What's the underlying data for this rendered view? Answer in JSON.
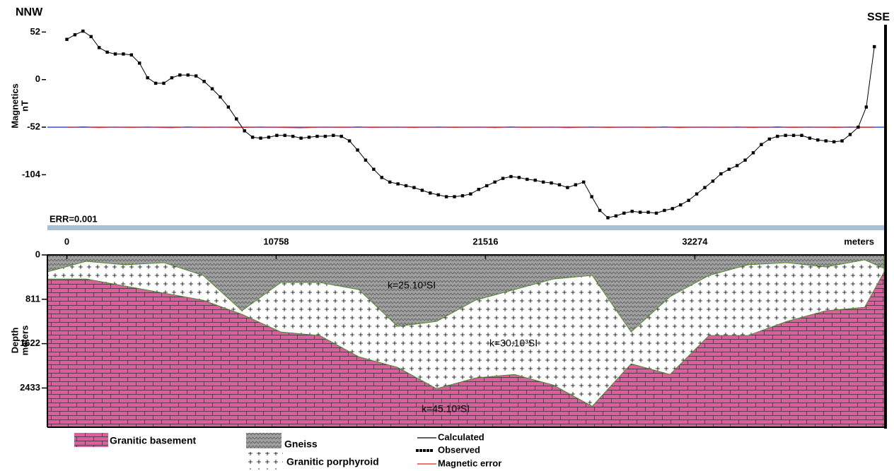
{
  "chart_data": [
    {
      "type": "line",
      "left_label": "NNW",
      "right_label": "SSE",
      "ylabel": [
        "Magnetics",
        "nT"
      ],
      "annotation": "ERR=0.001",
      "xlim": [
        -1000,
        42000
      ],
      "ylim": [
        -160,
        60
      ],
      "yticks": [
        52,
        0,
        -52,
        -104
      ],
      "reference_line": -52,
      "reference_color": "#3a4fe0",
      "x": [
        0,
        415,
        830,
        1245,
        1660,
        2075,
        2490,
        2905,
        3320,
        3735,
        4150,
        4565,
        4980,
        5395,
        5810,
        6225,
        6640,
        7055,
        7470,
        7885,
        8300,
        8715,
        9130,
        9545,
        9960,
        10375,
        10790,
        11205,
        11620,
        12035,
        12450,
        12865,
        13280,
        13695,
        14110,
        14525,
        14940,
        15355,
        15770,
        16185,
        16600,
        17015,
        17430,
        17845,
        18260,
        18675,
        19090,
        19505,
        19920,
        20335,
        20750,
        21165,
        21580,
        21995,
        22410,
        22825,
        23240,
        23655,
        24070,
        24485,
        24900,
        25315,
        25730,
        26145,
        26560,
        26975,
        27390,
        27805,
        28220,
        28635,
        29050,
        29465,
        29880,
        30295,
        30710,
        31125,
        31540,
        31955,
        32370,
        32785,
        33200,
        33615,
        34030,
        34445,
        34860,
        35275,
        35690,
        36105,
        36520,
        36935,
        37350,
        37765,
        38180,
        38595,
        39010,
        39425,
        39840,
        40255,
        40670,
        41085,
        41500
      ],
      "series": [
        {
          "name": "Calculated",
          "color": "#000000",
          "style": "line",
          "values": [
            44,
            49,
            53,
            47,
            35,
            30,
            28,
            28,
            27,
            18,
            2,
            -4,
            -4,
            2,
            5,
            5,
            4,
            -2,
            -10,
            -19,
            -30,
            -43,
            -56,
            -63,
            -64,
            -63,
            -61,
            -61,
            -62,
            -64,
            -63,
            -62,
            -62,
            -61,
            -62,
            -67,
            -77,
            -88,
            -98,
            -107,
            -112,
            -114,
            -116,
            -118,
            -121,
            -124,
            -126,
            -128,
            -128,
            -127,
            -125,
            -120,
            -116,
            -112,
            -108,
            -106,
            -107,
            -109,
            -110,
            -112,
            -113,
            -115,
            -118,
            -115,
            -112,
            -128,
            -143,
            -151,
            -149,
            -146,
            -144,
            -145,
            -145,
            -146,
            -143,
            -141,
            -137,
            -132,
            -125,
            -118,
            -111,
            -103,
            -98,
            -94,
            -88,
            -80,
            -71,
            -65,
            -62,
            -61,
            -61,
            -61,
            -64,
            -66,
            -67,
            -68,
            -67,
            -60,
            -52,
            -30,
            36
          ]
        },
        {
          "name": "Observed",
          "color": "#000000",
          "style": "markers",
          "values": [
            44,
            49,
            53,
            47,
            35,
            30,
            28,
            28,
            27,
            18,
            2,
            -4,
            -4,
            2,
            5,
            5,
            4,
            -2,
            -10,
            -19,
            -30,
            -43,
            -56,
            -63,
            -64,
            -63,
            -61,
            -61,
            -62,
            -64,
            -63,
            -62,
            -62,
            -61,
            -62,
            -67,
            -77,
            -88,
            -98,
            -107,
            -112,
            -114,
            -116,
            -118,
            -121,
            -124,
            -126,
            -128,
            -128,
            -127,
            -125,
            -120,
            -116,
            -112,
            -108,
            -106,
            -107,
            -109,
            -110,
            -112,
            -113,
            -115,
            -118,
            -115,
            -112,
            -128,
            -143,
            -151,
            -149,
            -146,
            -144,
            -145,
            -145,
            -146,
            -143,
            -141,
            -137,
            -132,
            -125,
            -118,
            -111,
            -103,
            -98,
            -94,
            -88,
            -80,
            -71,
            -65,
            -62,
            -61,
            -61,
            -61,
            -64,
            -66,
            -67,
            -68,
            -67,
            -60,
            -52,
            -30,
            36
          ]
        },
        {
          "name": "Magnetic error",
          "color": "#e02020",
          "style": "line",
          "values": [
            -52,
            -52,
            -51.5,
            -52,
            -52.5,
            -52,
            -51.8,
            -52,
            -52.3,
            -52,
            -51.7,
            -52,
            -52.4,
            -52.6,
            -52,
            -51.6,
            -52,
            -52.2,
            -52,
            -51.8,
            -52,
            -52.5,
            -52.3,
            -52,
            -51.7,
            -52,
            -52,
            -52.4,
            -52.6,
            -52.8,
            -52.4,
            -52,
            -51.8,
            -52,
            -52.2,
            -52,
            -51.6,
            -52,
            -52.3,
            -52,
            -52,
            -51.8,
            -52,
            -52.4,
            -52,
            -52,
            -51.7,
            -52,
            -52.3,
            -52,
            -52,
            -51.8,
            -52,
            -52.5,
            -52,
            -51.6,
            -52,
            -52.2,
            -52,
            -52,
            -51.8,
            -52,
            -52.6,
            -52.3,
            -52,
            -51.7,
            -52,
            -52.4,
            -52,
            -52,
            -51.8,
            -52,
            -52.3,
            -52,
            -51.6,
            -52,
            -52.5,
            -52,
            -52,
            -51.8,
            -52,
            -52.2,
            -52,
            -51.7,
            -52,
            -52.4,
            -52,
            -52,
            -51.5,
            -52,
            -52.3,
            -52,
            -51.8,
            -52,
            -52,
            -52.4,
            -52,
            -51.7,
            -52,
            -52.2,
            -52
          ]
        }
      ]
    },
    {
      "type": "section",
      "ylabel": [
        "Depth",
        "meters"
      ],
      "xlabel": "meters",
      "xlim": [
        -1000,
        42000
      ],
      "xticks": [
        0,
        10758,
        21516,
        32274
      ],
      "ylim": [
        0,
        3150
      ],
      "y_inverted": true,
      "yticks": [
        0,
        811,
        1622,
        2433
      ],
      "x": [
        -1000,
        1000,
        3000,
        5000,
        7000,
        9000,
        11000,
        13000,
        15000,
        17000,
        19000,
        21000,
        23000,
        25000,
        27000,
        29000,
        31000,
        33000,
        35000,
        37000,
        39000,
        41000,
        42000
      ],
      "series": [
        {
          "name": "Gneiss",
          "color": "#a0a0a0",
          "label": "k=25.10³SI",
          "values": [
            310,
            116,
            181,
            142,
            375,
            1021,
            504,
            504,
            634,
            1306,
            1215,
            828,
            634,
            440,
            375,
            1409,
            763,
            375,
            181,
            142,
            220,
            91,
            246
          ]
        },
        {
          "name": "Granitic porphyroid",
          "color": "#ffffff",
          "label": "k=30.10³SI",
          "values": [
            440,
            440,
            569,
            698,
            828,
            1086,
            1409,
            1474,
            1862,
            2056,
            2444,
            2250,
            2185,
            2379,
            2767,
            1991,
            2185,
            1474,
            1474,
            1215,
            1021,
            957,
            310
          ]
        },
        {
          "name": "Granitic basement",
          "color": "#dc5e9a",
          "label": "k=45.10³SI"
        }
      ]
    }
  ]
}
